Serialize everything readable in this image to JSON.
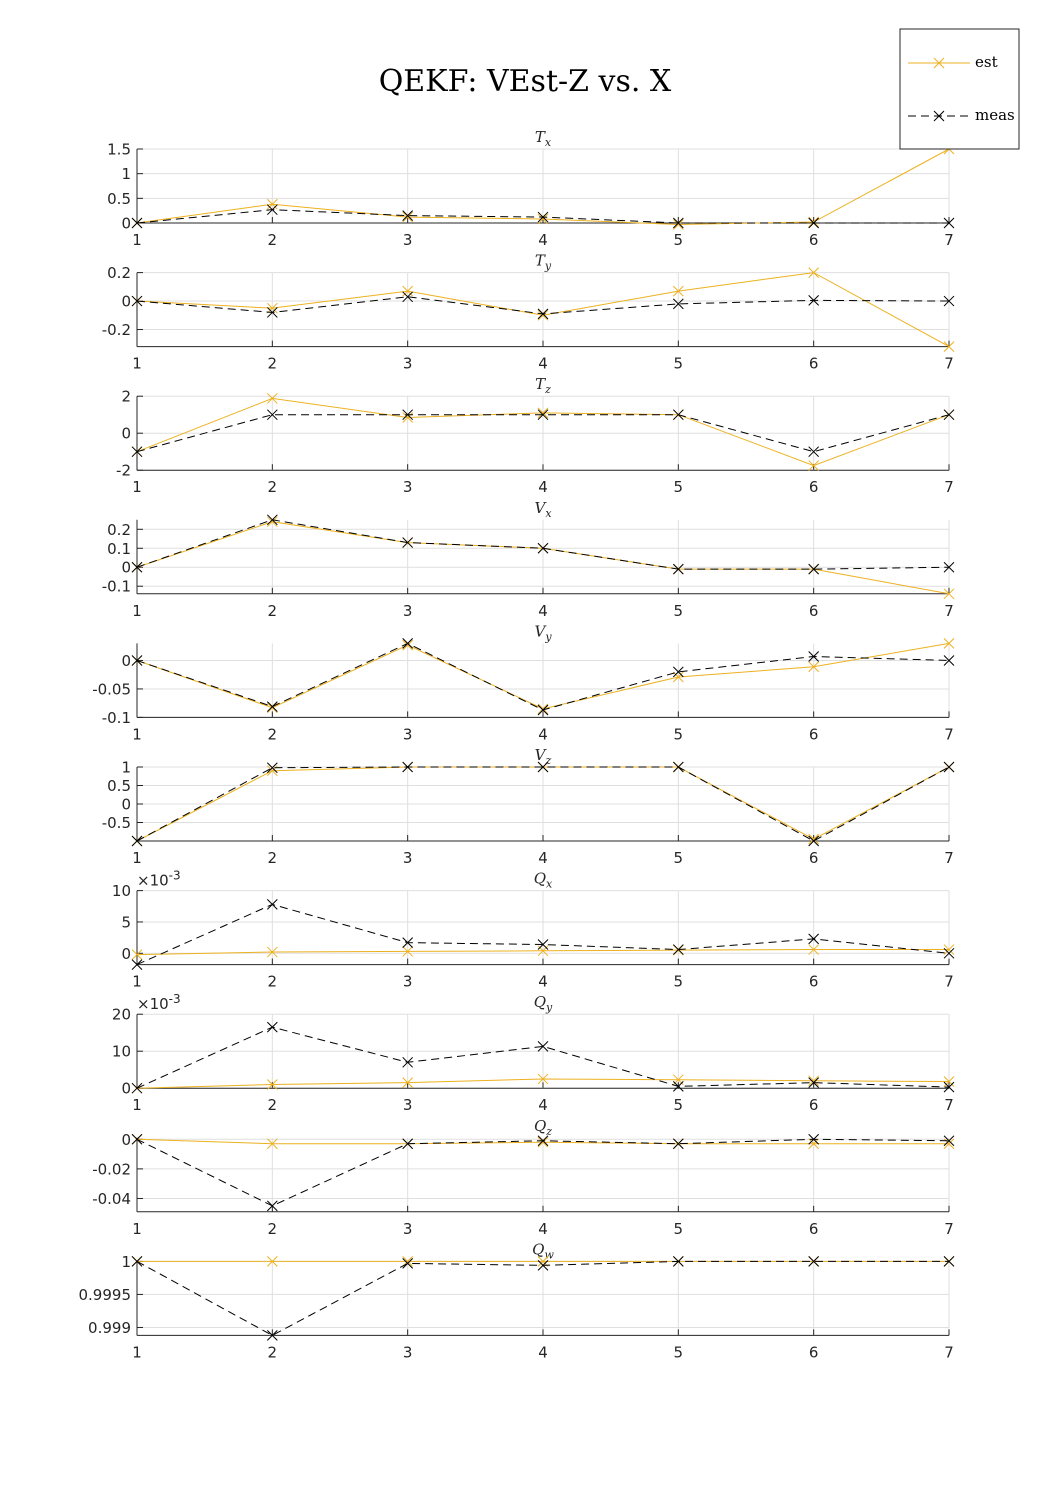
{
  "title": "QEKF: VEst-Z vs. X",
  "legend": {
    "est_label": "est",
    "meas_label": "meas",
    "est_color": "#EDB120",
    "meas_color": "#000000"
  },
  "chart_data": [
    {
      "type": "line",
      "title_main": "T",
      "title_sub": "x",
      "x": [
        1,
        2,
        3,
        4,
        5,
        6,
        7
      ],
      "xticks": [
        "1",
        "2",
        "3",
        "4",
        "5",
        "6",
        "7"
      ],
      "ylim": [
        0,
        1.5
      ],
      "yticks": [
        0,
        0.5,
        1,
        1.5
      ],
      "yticklabels": [
        "0",
        "0.5",
        "1",
        "1.5"
      ],
      "exponent": "",
      "series": [
        {
          "name": "est",
          "values": [
            0.0,
            0.38,
            0.12,
            0.08,
            -0.03,
            0.02,
            1.5
          ]
        },
        {
          "name": "meas",
          "values": [
            0.0,
            0.27,
            0.15,
            0.12,
            0.0,
            0.0,
            0.0
          ]
        }
      ]
    },
    {
      "type": "line",
      "title_main": "T",
      "title_sub": "y",
      "x": [
        1,
        2,
        3,
        4,
        5,
        6,
        7
      ],
      "xticks": [
        "1",
        "2",
        "3",
        "4",
        "5",
        "6",
        "7"
      ],
      "ylim": [
        -0.32,
        0.2
      ],
      "yticks": [
        -0.2,
        0,
        0.2
      ],
      "yticklabels": [
        "-0.2",
        "0",
        "0.2"
      ],
      "exponent": "",
      "series": [
        {
          "name": "est",
          "values": [
            0.0,
            -0.05,
            0.07,
            -0.1,
            0.07,
            0.2,
            -0.32
          ]
        },
        {
          "name": "meas",
          "values": [
            0.0,
            -0.08,
            0.03,
            -0.09,
            -0.02,
            0.005,
            0.0
          ]
        }
      ]
    },
    {
      "type": "line",
      "title_main": "T",
      "title_sub": "z",
      "x": [
        1,
        2,
        3,
        4,
        5,
        6,
        7
      ],
      "xticks": [
        "1",
        "2",
        "3",
        "4",
        "5",
        "6",
        "7"
      ],
      "ylim": [
        -2,
        2
      ],
      "yticks": [
        -2,
        0,
        2
      ],
      "yticklabels": [
        "-2",
        "0",
        "2"
      ],
      "exponent": "",
      "series": [
        {
          "name": "est",
          "values": [
            -1.0,
            1.88,
            0.85,
            1.1,
            1.0,
            -1.75,
            1.0
          ]
        },
        {
          "name": "meas",
          "values": [
            -1.0,
            1.0,
            1.0,
            1.0,
            1.0,
            -1.0,
            1.0
          ]
        }
      ]
    },
    {
      "type": "line",
      "title_main": "V",
      "title_sub": "x",
      "x": [
        1,
        2,
        3,
        4,
        5,
        6,
        7
      ],
      "xticks": [
        "1",
        "2",
        "3",
        "4",
        "5",
        "6",
        "7"
      ],
      "ylim": [
        -0.14,
        0.25
      ],
      "yticks": [
        -0.1,
        0,
        0.1,
        0.2
      ],
      "yticklabels": [
        "-0.1",
        "0",
        "0.1",
        "0.2"
      ],
      "exponent": "",
      "series": [
        {
          "name": "est",
          "values": [
            0.0,
            0.24,
            0.13,
            0.1,
            -0.01,
            -0.01,
            -0.14
          ]
        },
        {
          "name": "meas",
          "values": [
            0.0,
            0.25,
            0.13,
            0.1,
            -0.01,
            -0.01,
            0.0
          ]
        }
      ]
    },
    {
      "type": "line",
      "title_main": "V",
      "title_sub": "y",
      "x": [
        1,
        2,
        3,
        4,
        5,
        6,
        7
      ],
      "xticks": [
        "1",
        "2",
        "3",
        "4",
        "5",
        "6",
        "7"
      ],
      "ylim": [
        -0.1,
        0.03
      ],
      "yticks": [
        -0.1,
        -0.05,
        0
      ],
      "yticklabels": [
        "-0.1",
        "-0.05",
        "0"
      ],
      "exponent": "",
      "series": [
        {
          "name": "est",
          "values": [
            0.0,
            -0.083,
            0.027,
            -0.085,
            -0.029,
            -0.011,
            0.03
          ]
        },
        {
          "name": "meas",
          "values": [
            0.0,
            -0.081,
            0.03,
            -0.087,
            -0.02,
            0.007,
            0.0
          ]
        }
      ]
    },
    {
      "type": "line",
      "title_main": "V",
      "title_sub": "z",
      "x": [
        1,
        2,
        3,
        4,
        5,
        6,
        7
      ],
      "xticks": [
        "1",
        "2",
        "3",
        "4",
        "5",
        "6",
        "7"
      ],
      "ylim": [
        -1,
        1
      ],
      "yticks": [
        -0.5,
        0,
        0.5,
        1
      ],
      "yticklabels": [
        "-0.5",
        "0",
        "0.5",
        "1"
      ],
      "exponent": "",
      "series": [
        {
          "name": "est",
          "values": [
            -1.0,
            0.9,
            1.0,
            1.0,
            1.0,
            -0.95,
            1.0
          ]
        },
        {
          "name": "meas",
          "values": [
            -1.0,
            0.98,
            1.0,
            1.0,
            1.0,
            -1.0,
            1.0
          ]
        }
      ]
    },
    {
      "type": "line",
      "title_main": "Q",
      "title_sub": "x",
      "x": [
        1,
        2,
        3,
        4,
        5,
        6,
        7
      ],
      "xticks": [
        "1",
        "2",
        "3",
        "4",
        "5",
        "6",
        "7"
      ],
      "ylim": [
        -0.0018,
        0.01
      ],
      "yticks": [
        0,
        0.005,
        0.01
      ],
      "yticklabels": [
        "0",
        "5",
        "10"
      ],
      "exponent": "×10-3",
      "series": [
        {
          "name": "est",
          "values": [
            -0.0002,
            0.0002,
            0.0003,
            0.0004,
            0.0005,
            0.0006,
            0.0006
          ]
        },
        {
          "name": "meas",
          "values": [
            -0.0018,
            0.0078,
            0.0017,
            0.0014,
            0.0006,
            0.0023,
            0.0
          ]
        }
      ]
    },
    {
      "type": "line",
      "title_main": "Q",
      "title_sub": "y",
      "x": [
        1,
        2,
        3,
        4,
        5,
        6,
        7
      ],
      "xticks": [
        "1",
        "2",
        "3",
        "4",
        "5",
        "6",
        "7"
      ],
      "ylim": [
        0,
        0.02
      ],
      "yticks": [
        0,
        0.01,
        0.02
      ],
      "yticklabels": [
        "0",
        "10",
        "20"
      ],
      "exponent": "×10-3",
      "series": [
        {
          "name": "est",
          "values": [
            0.0,
            0.001,
            0.0015,
            0.0025,
            0.0023,
            0.002,
            0.0018
          ]
        },
        {
          "name": "meas",
          "values": [
            0.0,
            0.0165,
            0.007,
            0.0113,
            0.0005,
            0.0015,
            0.0003
          ]
        }
      ]
    },
    {
      "type": "line",
      "title_main": "Q",
      "title_sub": "z",
      "x": [
        1,
        2,
        3,
        4,
        5,
        6,
        7
      ],
      "xticks": [
        "1",
        "2",
        "3",
        "4",
        "5",
        "6",
        "7"
      ],
      "ylim": [
        -0.049,
        0.001
      ],
      "yticks": [
        -0.04,
        -0.02,
        0
      ],
      "yticklabels": [
        "-0.04",
        "-0.02",
        "0"
      ],
      "exponent": "",
      "series": [
        {
          "name": "est",
          "values": [
            0.0,
            -0.003,
            -0.003,
            -0.002,
            -0.003,
            -0.003,
            -0.003
          ]
        },
        {
          "name": "meas",
          "values": [
            0.0,
            -0.045,
            -0.003,
            -0.001,
            -0.003,
            0.0,
            -0.001
          ]
        }
      ]
    },
    {
      "type": "line",
      "title_main": "Q",
      "title_sub": "w",
      "x": [
        1,
        2,
        3,
        4,
        5,
        6,
        7
      ],
      "xticks": [
        "1",
        "2",
        "3",
        "4",
        "5",
        "6",
        "7"
      ],
      "ylim": [
        0.99888,
        1.0
      ],
      "yticks": [
        0.999,
        0.9995,
        1
      ],
      "yticklabels": [
        "0.999",
        "0.9995",
        "1"
      ],
      "exponent": "",
      "series": [
        {
          "name": "est",
          "values": [
            1.0,
            1.0,
            1.0,
            1.0,
            1.0,
            1.0,
            1.0
          ]
        },
        {
          "name": "meas",
          "values": [
            1.0,
            0.99888,
            0.99997,
            0.99994,
            1.0,
            1.0,
            1.0
          ]
        }
      ]
    }
  ]
}
